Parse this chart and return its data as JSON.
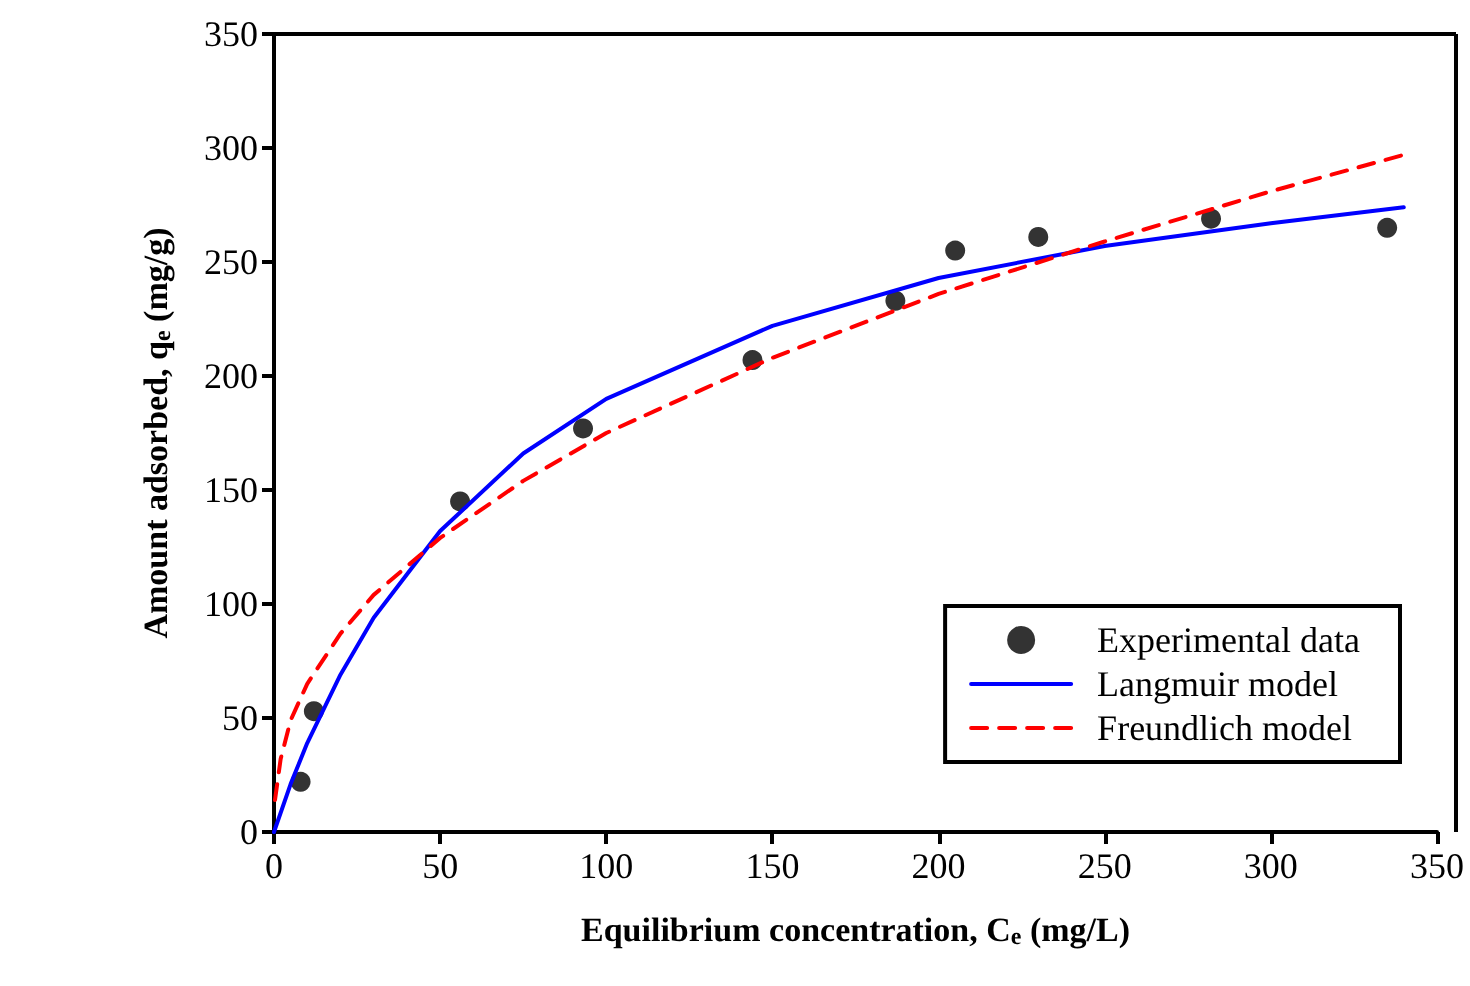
{
  "chart_data": {
    "type": "scatter",
    "xlabel": "Equilibrium concentration, C$_{e}$ (mg/L)",
    "ylabel": "Amount adsorbed, q$_{e}$ (mg/g)",
    "xlim": [
      0,
      350
    ],
    "xticks": [
      0,
      50,
      100,
      150,
      200,
      250,
      300,
      350
    ],
    "ylim": [
      0,
      350
    ],
    "yticks": [
      0,
      50,
      100,
      150,
      200,
      250,
      300,
      350
    ],
    "grid": false,
    "legend": "bottom right",
    "series": [
      {
        "name": "Experimental data",
        "color": "#000000",
        "marker": "circle",
        "x": [
          8,
          12,
          56,
          93,
          144,
          187,
          205,
          230,
          282,
          335
        ],
        "values": [
          22,
          53,
          145,
          177,
          207,
          233,
          255,
          261,
          269,
          265
        ]
      },
      {
        "name": "Langmuir model",
        "type": "line",
        "color": "#0000ff",
        "line_style": "solid",
        "marker": "none",
        "x": [
          0,
          5,
          10,
          20,
          30,
          50,
          75,
          100,
          150,
          200,
          250,
          300,
          340
        ],
        "values": [
          0,
          21,
          39,
          69,
          94,
          132,
          166,
          190,
          222,
          243,
          257,
          267,
          274
        ]
      },
      {
        "name": "Freundlich model",
        "type": "line",
        "color": "#ff0000",
        "line_style": "dashed",
        "marker": "none",
        "x": [
          0.3,
          2,
          5,
          10,
          20,
          30,
          50,
          75,
          100,
          150,
          200,
          250,
          300,
          340
        ],
        "values": [
          14,
          32,
          49,
          65,
          87,
          104,
          129,
          154,
          175,
          208,
          236,
          259,
          281,
          297
        ]
      }
    ]
  }
}
